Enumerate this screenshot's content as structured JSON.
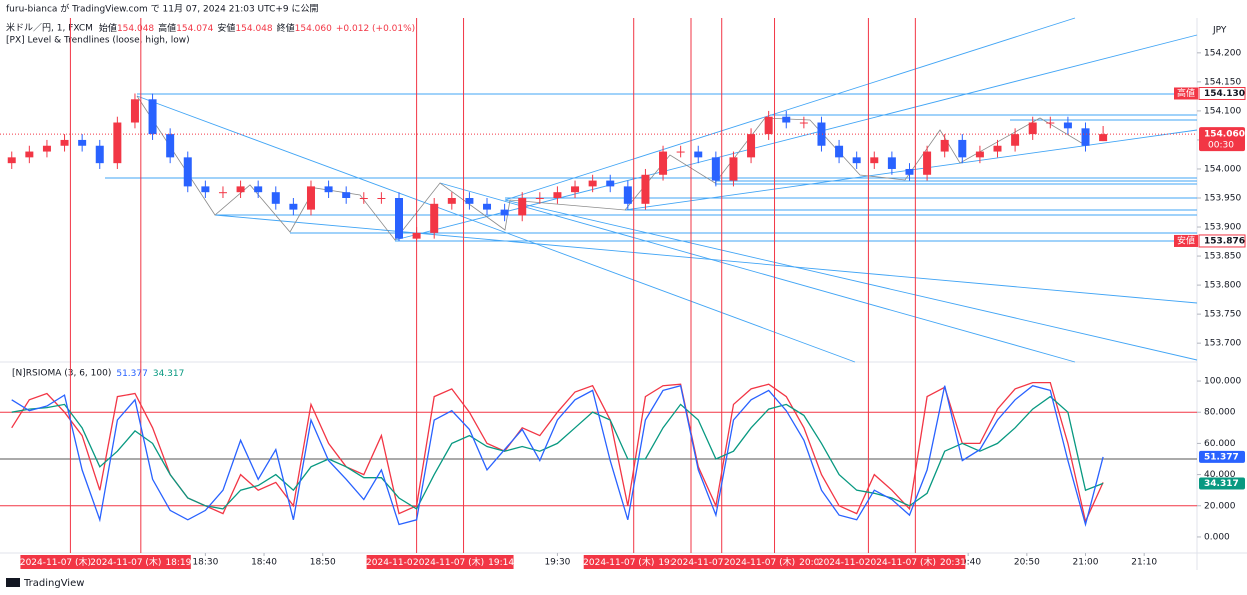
{
  "header": {
    "publisher": "furu-bianca が TradingView.com で 11月 07, 2024 21:03 UTC+9 に公開",
    "symbol": "米ドル／円, 1, FXCM",
    "ohlc_legend": [
      {
        "label": "始値",
        "value": "154.048"
      },
      {
        "label": "高値",
        "value": "154.074"
      },
      {
        "label": "安値",
        "value": "154.048"
      },
      {
        "label": "終値",
        "value": "154.060"
      }
    ],
    "change": "+0.012 (+0.01%)",
    "indicator": "[PX] Level & Trendlines (loose, high, low)",
    "currency": "JPY",
    "footer": "TradingView"
  },
  "chart_data": [
    {
      "type": "candlestick",
      "up_color": "#f23645",
      "down_color": "#2962ff",
      "x": [
        "17:57",
        "18:00",
        "18:03",
        "18:06",
        "18:09",
        "18:12",
        "18:15",
        "18:18",
        "18:21",
        "18:24",
        "18:27",
        "18:30",
        "18:33",
        "18:36",
        "18:39",
        "18:42",
        "18:45",
        "18:48",
        "18:51",
        "18:54",
        "18:57",
        "19:00",
        "19:03",
        "19:06",
        "19:09",
        "19:12",
        "19:15",
        "19:18",
        "19:21",
        "19:24",
        "19:27",
        "19:30",
        "19:33",
        "19:36",
        "19:39",
        "19:42",
        "19:45",
        "19:48",
        "19:51",
        "19:54",
        "19:57",
        "20:00",
        "20:03",
        "20:06",
        "20:09",
        "20:12",
        "20:15",
        "20:18",
        "20:21",
        "20:24",
        "20:27",
        "20:30",
        "20:33",
        "20:36",
        "20:39",
        "20:42",
        "20:45",
        "20:48",
        "20:51",
        "20:54",
        "20:57",
        "21:00",
        "21:03"
      ],
      "open": [
        154.01,
        154.02,
        154.03,
        154.04,
        154.05,
        154.04,
        154.01,
        154.08,
        154.12,
        154.06,
        154.02,
        153.97,
        153.96,
        153.96,
        153.97,
        153.96,
        153.94,
        153.93,
        153.97,
        153.96,
        153.95,
        153.95,
        153.95,
        153.88,
        153.89,
        153.94,
        153.95,
        153.94,
        153.93,
        153.92,
        153.95,
        153.95,
        153.96,
        153.97,
        153.98,
        153.97,
        153.94,
        153.99,
        154.03,
        154.03,
        154.02,
        153.98,
        154.02,
        154.06,
        154.09,
        154.08,
        154.08,
        154.04,
        154.02,
        154.01,
        154.02,
        154.0,
        153.99,
        154.03,
        154.05,
        154.02,
        154.03,
        154.04,
        154.06,
        154.08,
        154.08,
        154.07,
        154.048
      ],
      "high": [
        154.03,
        154.04,
        154.05,
        154.06,
        154.06,
        154.05,
        154.09,
        154.13,
        154.13,
        154.07,
        154.03,
        153.98,
        153.97,
        153.98,
        153.98,
        153.97,
        153.95,
        153.98,
        153.98,
        153.97,
        153.96,
        153.96,
        153.96,
        153.9,
        153.95,
        153.96,
        153.96,
        153.95,
        153.94,
        153.96,
        153.96,
        153.97,
        153.98,
        153.99,
        153.99,
        153.98,
        154.0,
        154.04,
        154.04,
        154.04,
        154.03,
        154.03,
        154.07,
        154.1,
        154.1,
        154.09,
        154.09,
        154.05,
        154.03,
        154.03,
        154.03,
        154.01,
        154.04,
        154.06,
        154.06,
        154.04,
        154.05,
        154.07,
        154.09,
        154.09,
        154.09,
        154.08,
        154.074
      ],
      "low": [
        154.0,
        154.01,
        154.02,
        154.03,
        154.03,
        154.0,
        154.0,
        154.07,
        154.05,
        154.01,
        153.96,
        153.95,
        153.95,
        153.95,
        153.95,
        153.93,
        153.92,
        153.92,
        153.95,
        153.94,
        153.94,
        153.94,
        153.876,
        153.878,
        153.88,
        153.93,
        153.93,
        153.92,
        153.91,
        153.91,
        153.94,
        153.94,
        153.95,
        153.96,
        153.96,
        153.93,
        153.93,
        153.98,
        154.02,
        154.01,
        153.97,
        153.97,
        154.01,
        154.05,
        154.07,
        154.07,
        154.03,
        154.01,
        154.0,
        154.0,
        153.99,
        153.98,
        153.98,
        154.02,
        154.01,
        154.01,
        154.02,
        154.03,
        154.05,
        154.07,
        154.06,
        154.03,
        154.048
      ],
      "close": [
        154.02,
        154.03,
        154.04,
        154.05,
        154.04,
        154.01,
        154.08,
        154.12,
        154.06,
        154.02,
        153.97,
        153.96,
        153.96,
        153.97,
        153.96,
        153.94,
        153.93,
        153.97,
        153.96,
        153.95,
        153.95,
        153.95,
        153.88,
        153.89,
        153.94,
        153.95,
        153.94,
        153.93,
        153.92,
        153.95,
        153.95,
        153.96,
        153.97,
        153.98,
        153.97,
        153.94,
        153.99,
        154.03,
        154.03,
        154.02,
        153.98,
        154.02,
        154.06,
        154.09,
        154.08,
        154.08,
        154.04,
        154.02,
        154.01,
        154.02,
        154.0,
        153.99,
        154.03,
        154.05,
        154.02,
        154.03,
        154.04,
        154.06,
        154.08,
        154.08,
        154.07,
        154.04,
        154.06
      ],
      "xlim": [
        "17:55",
        "21:19"
      ],
      "xticks": [
        "18:30",
        "18:40",
        "18:50",
        "19:30",
        "20:40",
        "20:50",
        "21:00",
        "21:10"
      ],
      "ylim": [
        153.671,
        154.26
      ],
      "yticks": [
        {
          "value": 154.2,
          "label": "154.200"
        },
        {
          "value": 154.15,
          "label": "154.150"
        },
        {
          "value": 154.1,
          "label": "154.100"
        },
        {
          "value": 154.05,
          "label": "154.050"
        },
        {
          "value": 154.0,
          "label": "154.000"
        },
        {
          "value": 153.95,
          "label": "153.950"
        },
        {
          "value": 153.9,
          "label": "153.900"
        },
        {
          "value": 153.85,
          "label": "153.850"
        },
        {
          "value": 153.8,
          "label": "153.800"
        },
        {
          "value": 153.75,
          "label": "153.750"
        },
        {
          "value": 153.7,
          "label": "153.700"
        }
      ],
      "price_labels": [
        {
          "tag": "高値",
          "value": 154.13,
          "label": "154.130"
        },
        {
          "tag": "安値",
          "value": 153.876,
          "label": "153.876"
        }
      ],
      "last_price": {
        "value": 154.06,
        "label": "154.060",
        "countdown": "00:30"
      },
      "markers": [
        {
          "date": "2024-11-07 (木)",
          "time": "18:07"
        },
        {
          "date": "2024-11-07 (木)",
          "time": "18:19"
        },
        {
          "date": "2024-11-07 (木)",
          "time": "19:06"
        },
        {
          "date": "2024-11-07 (木)",
          "time": "19:14"
        },
        {
          "date": "2024-11-07 (木)",
          "time": "19:43"
        },
        {
          "date": "2024-11-07 (木)",
          "time": "19:58"
        },
        {
          "date": "2024-11-07 (木)",
          "time": "20:07"
        },
        {
          "date": "2024-11-07 (木)",
          "time": "20:23"
        },
        {
          "date": "2024-11-07 (木)",
          "time": "20:31"
        }
      ]
    },
    {
      "type": "line",
      "title": "[N]RSIOMA (3, 6, 100)",
      "series": [
        {
          "name": "51.377",
          "color": "#2962ff",
          "values": [
            88,
            81,
            84,
            91,
            43,
            11,
            75,
            88,
            37,
            17,
            11,
            17,
            30,
            62,
            37,
            56,
            11,
            75,
            49,
            37,
            24,
            43,
            8,
            11,
            75,
            81,
            69,
            43,
            56,
            69,
            49,
            75,
            88,
            94,
            49,
            11,
            75,
            94,
            97,
            43,
            14,
            75,
            88,
            94,
            81,
            62,
            30,
            14,
            11,
            30,
            24,
            14,
            43,
            97,
            49,
            56,
            75,
            88,
            97,
            94,
            49,
            8,
            51.377
          ]
        },
        {
          "name": "34.317",
          "color": "#089981",
          "values": [
            80,
            82,
            83,
            85,
            70,
            45,
            55,
            68,
            60,
            40,
            25,
            20,
            18,
            30,
            33,
            40,
            30,
            45,
            50,
            45,
            38,
            38,
            25,
            18,
            40,
            60,
            65,
            58,
            55,
            58,
            55,
            60,
            70,
            80,
            75,
            50,
            50,
            70,
            85,
            75,
            50,
            55,
            70,
            82,
            85,
            78,
            60,
            40,
            30,
            28,
            25,
            20,
            28,
            55,
            60,
            55,
            60,
            70,
            82,
            90,
            80,
            30,
            34.317
          ]
        },
        {
          "color": "#f23645",
          "values": [
            70,
            88,
            92,
            80,
            65,
            30,
            90,
            92,
            70,
            40,
            25,
            20,
            15,
            40,
            30,
            35,
            20,
            85,
            60,
            45,
            40,
            65,
            15,
            20,
            90,
            95,
            80,
            60,
            55,
            70,
            65,
            80,
            93,
            97,
            75,
            20,
            90,
            97,
            98,
            45,
            20,
            85,
            95,
            98,
            90,
            70,
            40,
            20,
            15,
            40,
            30,
            18,
            90,
            96,
            60,
            60,
            82,
            95,
            99,
            99,
            60,
            10,
            35
          ]
        }
      ],
      "ylim": [
        -10.3,
        110.3
      ],
      "yticks": [
        {
          "value": 100,
          "label": "100.000"
        },
        {
          "value": 80,
          "label": "80.000"
        },
        {
          "value": 60,
          "label": "60.000"
        },
        {
          "value": 40,
          "label": "40.000"
        },
        {
          "value": 20,
          "label": "20.000"
        },
        {
          "value": 0,
          "label": "0.000"
        }
      ],
      "levels": [
        {
          "value": 80,
          "color": "#f23645"
        },
        {
          "value": 50,
          "color": "#555555"
        },
        {
          "value": 20,
          "color": "#f23645"
        }
      ]
    }
  ]
}
